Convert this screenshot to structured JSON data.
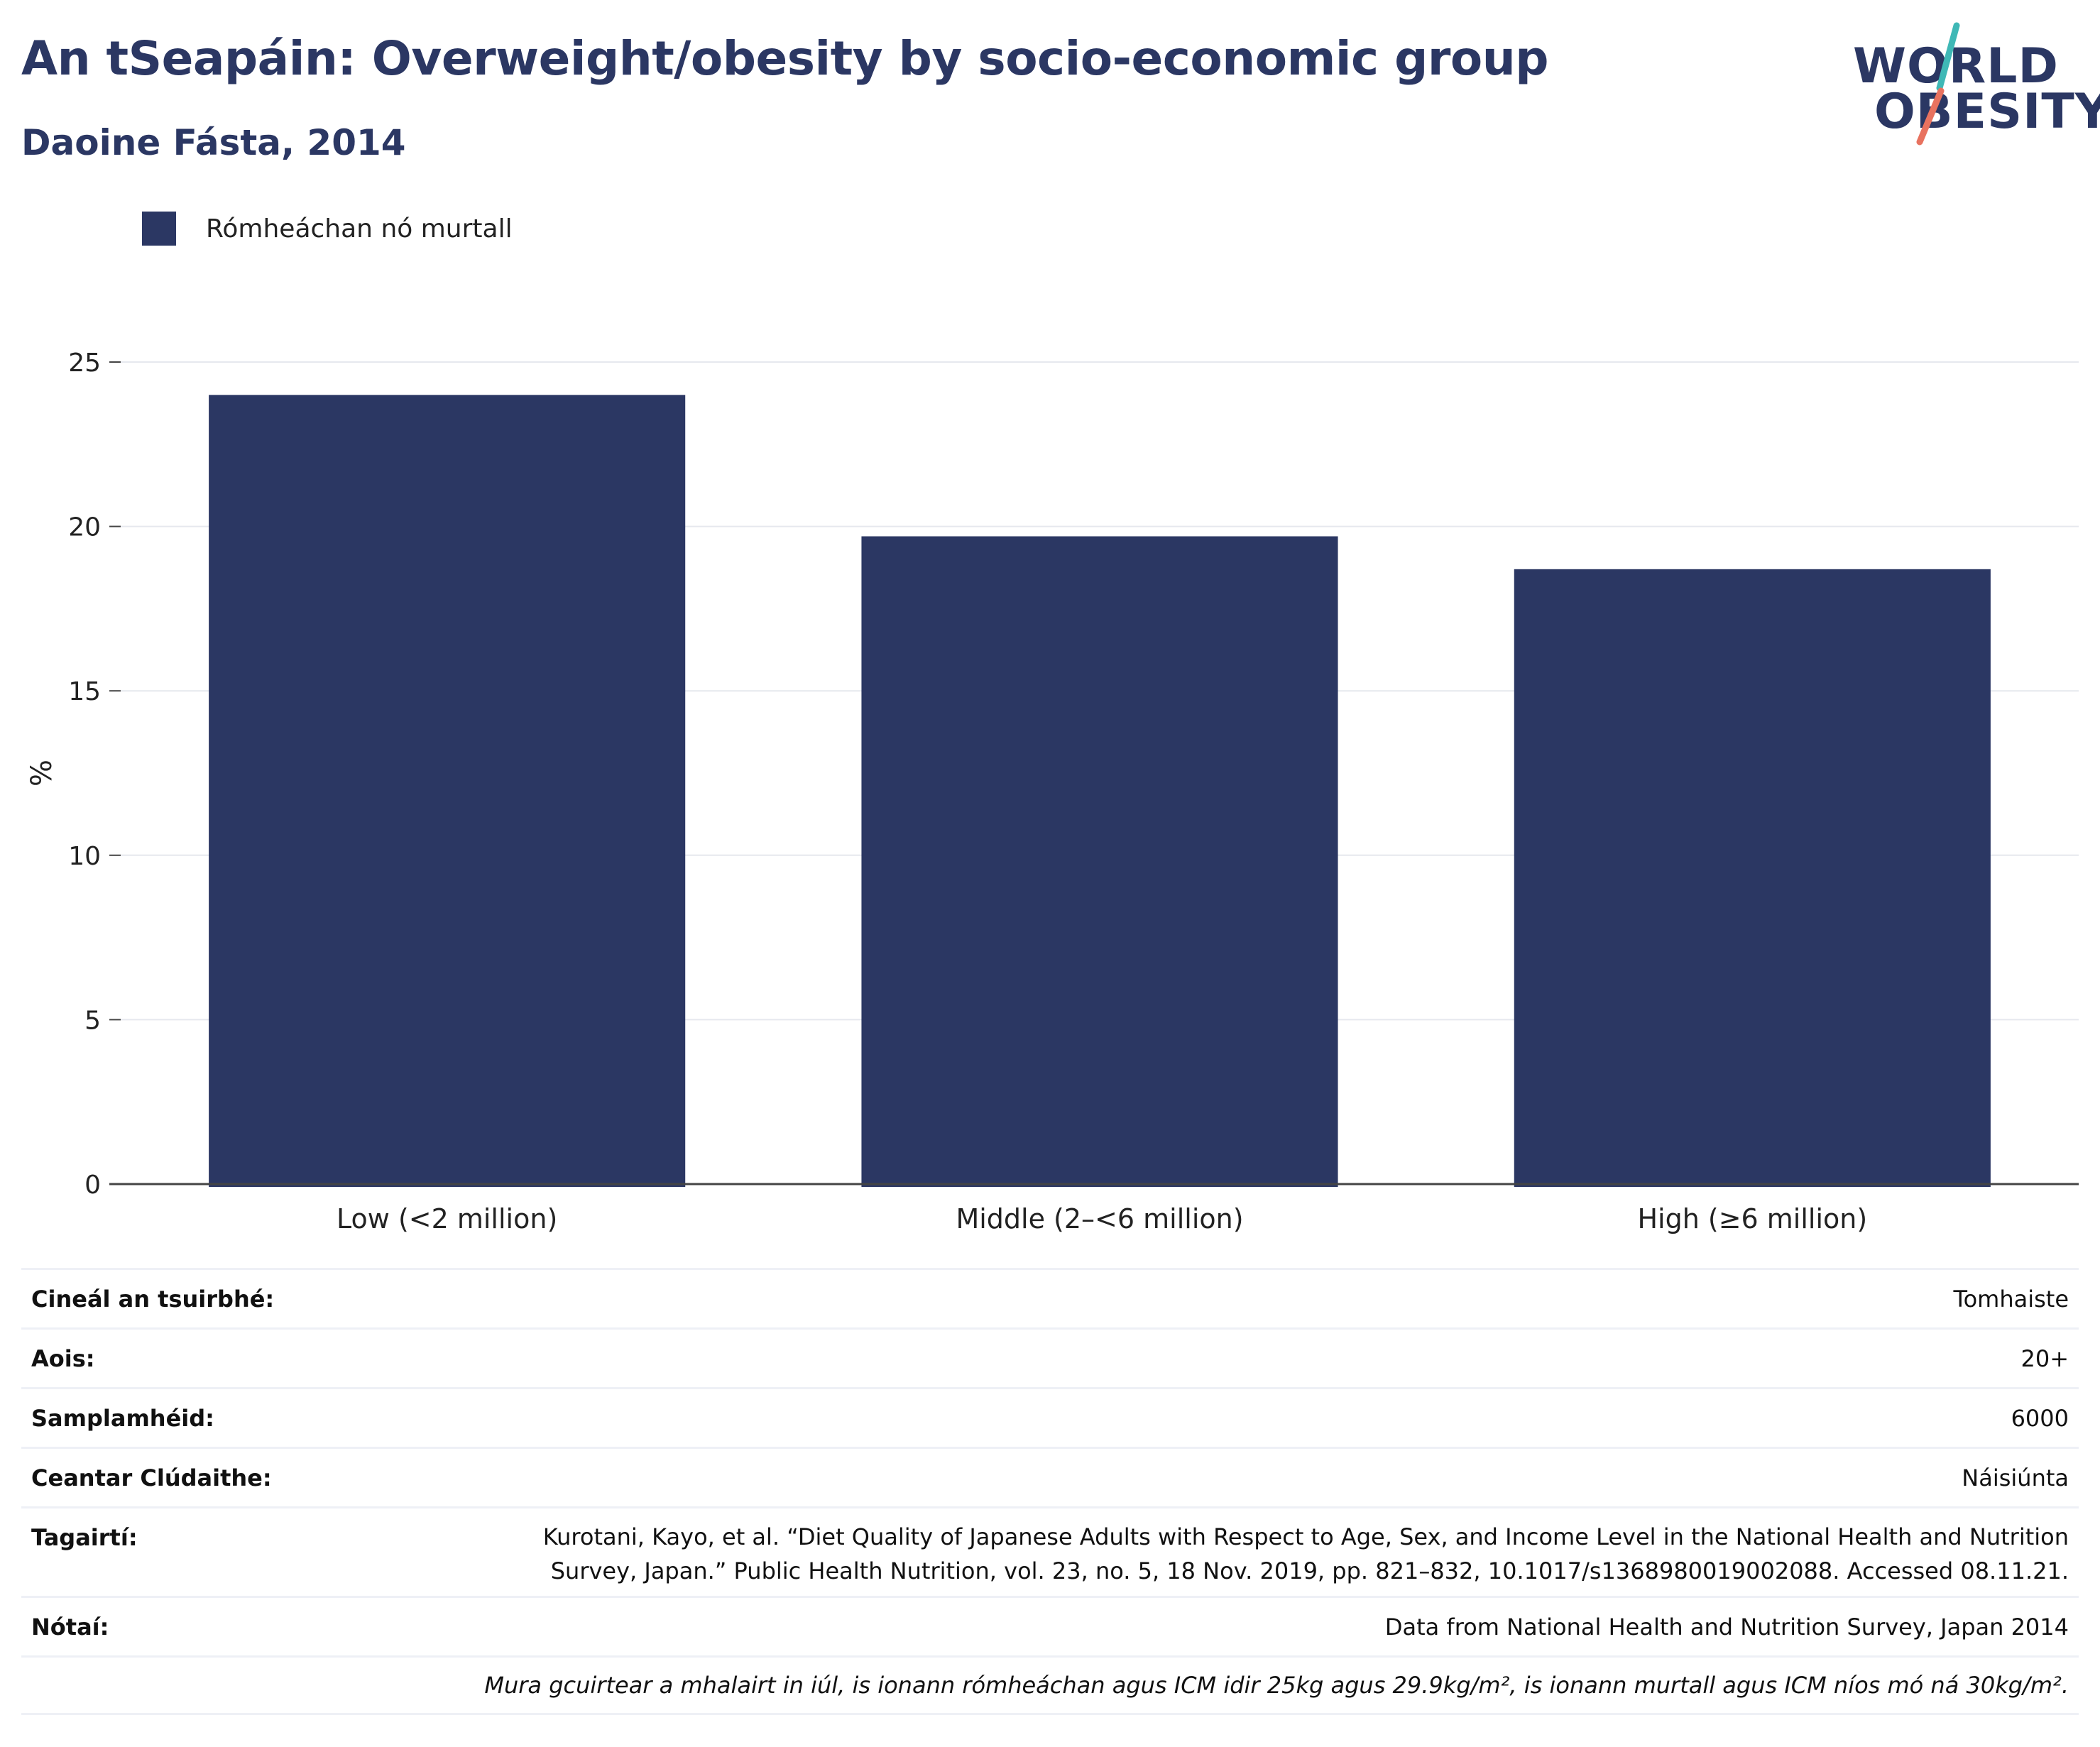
{
  "header": {
    "title": "An tSeapáin: Overweight/obesity by socio-economic group",
    "subtitle": "Daoine Fásta, 2014"
  },
  "logo": {
    "line1": "WORLD",
    "line2": "OBESITY",
    "slash_colors": [
      "#3fb8b6",
      "#e8725f"
    ]
  },
  "legend": {
    "items": [
      {
        "label": "Rómheáchan nó murtall",
        "color": "#2b3763"
      }
    ]
  },
  "chart_data": {
    "type": "bar",
    "categories": [
      "Low (<2 million)",
      "Middle (2–<6 million)",
      "High (≥6 million)"
    ],
    "series": [
      {
        "name": "Rómheáchan nó murtall",
        "values": [
          24.0,
          19.7,
          18.7
        ],
        "color": "#2b3763"
      }
    ],
    "xlabel": "",
    "ylabel": "%",
    "ylim": [
      0,
      25
    ],
    "yticks": [
      "0",
      "5",
      "10",
      "15",
      "20",
      "25"
    ],
    "grid": true,
    "legend_position": "top-left"
  },
  "metadata": {
    "rows": [
      {
        "key": "Cineál an tsuirbhé:",
        "value": "Tomhaiste"
      },
      {
        "key": "Aois:",
        "value": "20+"
      },
      {
        "key": "Samplamhéid:",
        "value": "6000"
      },
      {
        "key": "Ceantar Clúdaithe:",
        "value": "Náisiúnta"
      },
      {
        "key": "Tagairtí:",
        "value": "Kurotani, Kayo, et al. “Diet Quality of Japanese Adults with Respect to Age, Sex, and Income Level in the National Health and Nutrition Survey, Japan.” Public Health Nutrition, vol. 23, no. 5, 18 Nov. 2019, pp. 821–832, 10.1017/s1368980019002088. Accessed 08.11.21."
      },
      {
        "key": "Nótaí:",
        "value": "Data from National Health and Nutrition Survey, Japan 2014"
      }
    ],
    "footnote": "Mura gcuirtear a mhalairt in iúl, is ionann rómheáchan agus ICM idir 25kg agus 29.9kg/m², is ionann murtall agus ICM níos mó ná 30kg/m²."
  }
}
